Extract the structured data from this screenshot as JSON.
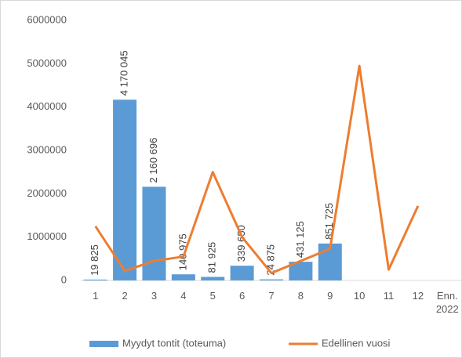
{
  "chart_data": {
    "type": "bar_line",
    "categories": [
      "1",
      "2",
      "3",
      "4",
      "5",
      "6",
      "7",
      "8",
      "9",
      "10",
      "11",
      "12",
      "Enn. 2022"
    ],
    "series": [
      {
        "name": "Myydyt tontit (toteuma)",
        "type": "bar",
        "color": "#5b9bd5",
        "values": [
          19825,
          4170045,
          2160696,
          140975,
          81925,
          339650,
          24875,
          431125,
          851725,
          null,
          null,
          null,
          null
        ],
        "value_labels": [
          "19 825",
          "4 170 045",
          "2 160 696",
          "140 975",
          "81 925",
          "339 650",
          "24 875",
          "431 125",
          "851 725",
          null,
          null,
          null,
          null
        ]
      },
      {
        "name": "Edellinen vuosi",
        "type": "line",
        "color": "#ed7d31",
        "values": [
          1250000,
          220000,
          450000,
          550000,
          2500000,
          1000000,
          170000,
          450000,
          730000,
          4950000,
          250000,
          1720000,
          null
        ]
      }
    ],
    "ylim": [
      0,
      6000000
    ],
    "yticks": [
      0,
      1000000,
      2000000,
      3000000,
      4000000,
      5000000,
      6000000
    ],
    "grid": false,
    "legend": "bottom"
  }
}
